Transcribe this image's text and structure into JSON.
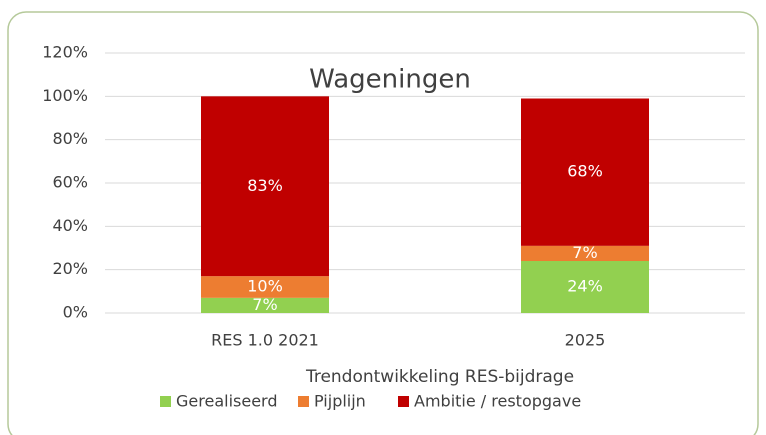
{
  "chart_data": {
    "type": "stacked_bar",
    "title": "Wageningen",
    "x_label": "Trendontwikkeling RES-bijdrage",
    "categories": [
      "RES 1.0 2021",
      "2025"
    ],
    "series": [
      {
        "name": "Gerealiseerd",
        "color": "#92d050",
        "values": [
          7,
          24
        ],
        "value_labels": [
          "7%",
          "24%"
        ]
      },
      {
        "name": "Pijplijn",
        "color": "#ed7d31",
        "values": [
          10,
          7
        ],
        "value_labels": [
          "10%",
          "7%"
        ]
      },
      {
        "name": "Ambitie / restopgave",
        "color": "#c00000",
        "values": [
          83,
          68
        ],
        "value_labels": [
          "83%",
          "68%"
        ]
      }
    ],
    "ylim": [
      0,
      120
    ],
    "yticks": [
      {
        "value": 0,
        "label": "0%"
      },
      {
        "value": 20,
        "label": "20%"
      },
      {
        "value": 40,
        "label": "40%"
      },
      {
        "value": 60,
        "label": "60%"
      },
      {
        "value": 80,
        "label": "80%"
      },
      {
        "value": 100,
        "label": "100%"
      },
      {
        "value": 120,
        "label": "120%"
      }
    ],
    "grid": true,
    "legend": "bottom"
  }
}
